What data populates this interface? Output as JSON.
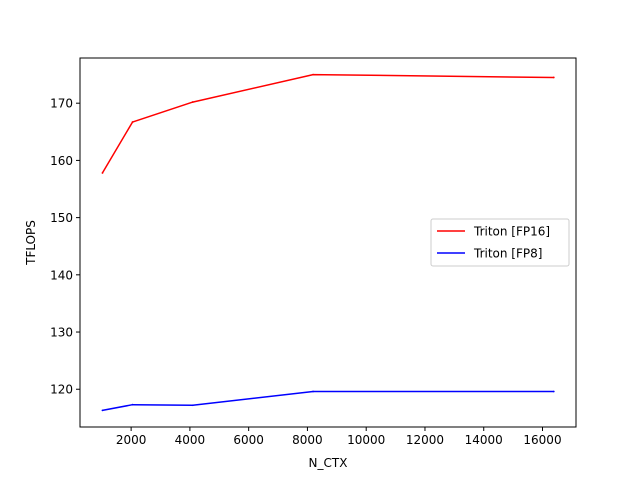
{
  "chart_data": {
    "type": "line",
    "title": "",
    "xlabel": "N_CTX",
    "ylabel": "TFLOPS",
    "xlim": [
      260,
      17140
    ],
    "ylim": [
      113.4,
      177.9
    ],
    "x_ticks": [
      2000,
      4000,
      6000,
      8000,
      10000,
      12000,
      14000,
      16000
    ],
    "y_ticks": [
      120,
      130,
      140,
      150,
      160,
      170
    ],
    "grid": false,
    "legend_position": "center-right",
    "series": [
      {
        "name": "Triton [FP16]",
        "color": "#ff0000",
        "x": [
          1024,
          2048,
          4096,
          8192,
          16384
        ],
        "y": [
          157.8,
          166.7,
          170.2,
          175.0,
          174.5
        ]
      },
      {
        "name": "Triton [FP8]",
        "color": "#0000ff",
        "x": [
          1024,
          2048,
          4096,
          8192,
          16384
        ],
        "y": [
          116.3,
          117.3,
          117.2,
          119.6,
          119.6
        ]
      }
    ]
  }
}
